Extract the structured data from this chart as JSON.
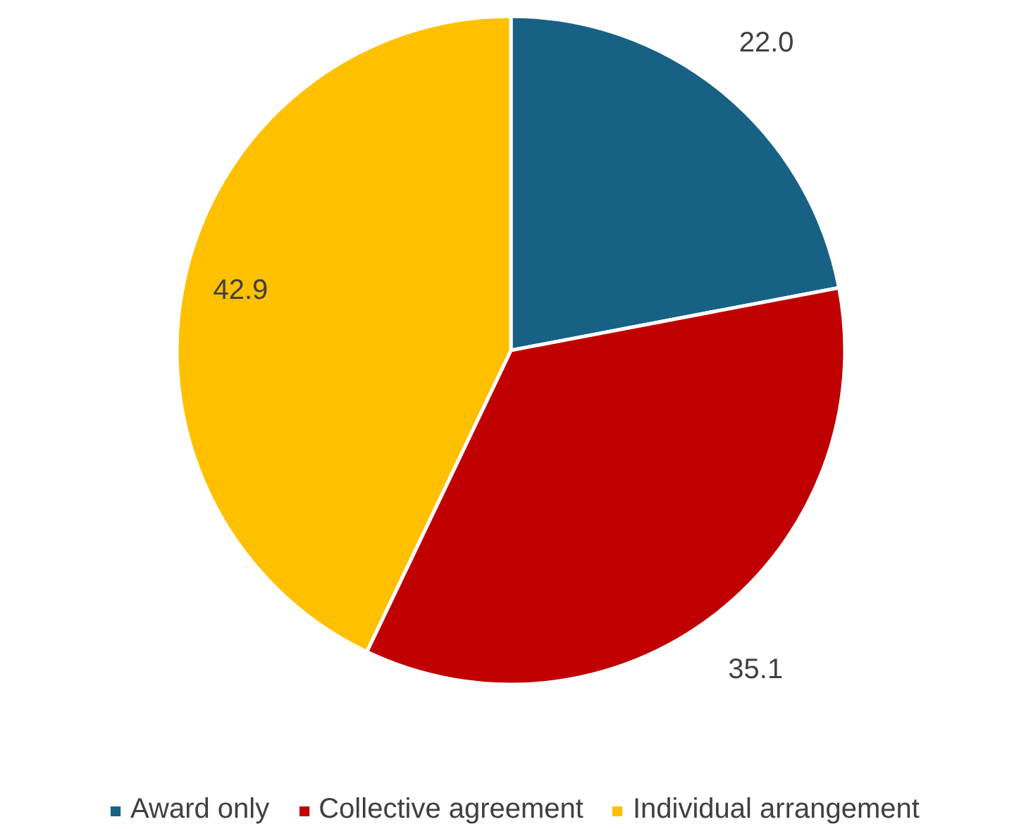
{
  "chart_data": {
    "type": "pie",
    "categories": [
      "Award only",
      "Collective agreement",
      "Individual arrangement"
    ],
    "values": [
      22.0,
      35.1,
      42.9
    ],
    "colors": [
      "#176185",
      "#c00000",
      "#ffc000"
    ],
    "value_labels": [
      "22.0",
      "35.1",
      "42.9"
    ],
    "legend": "bottom"
  }
}
